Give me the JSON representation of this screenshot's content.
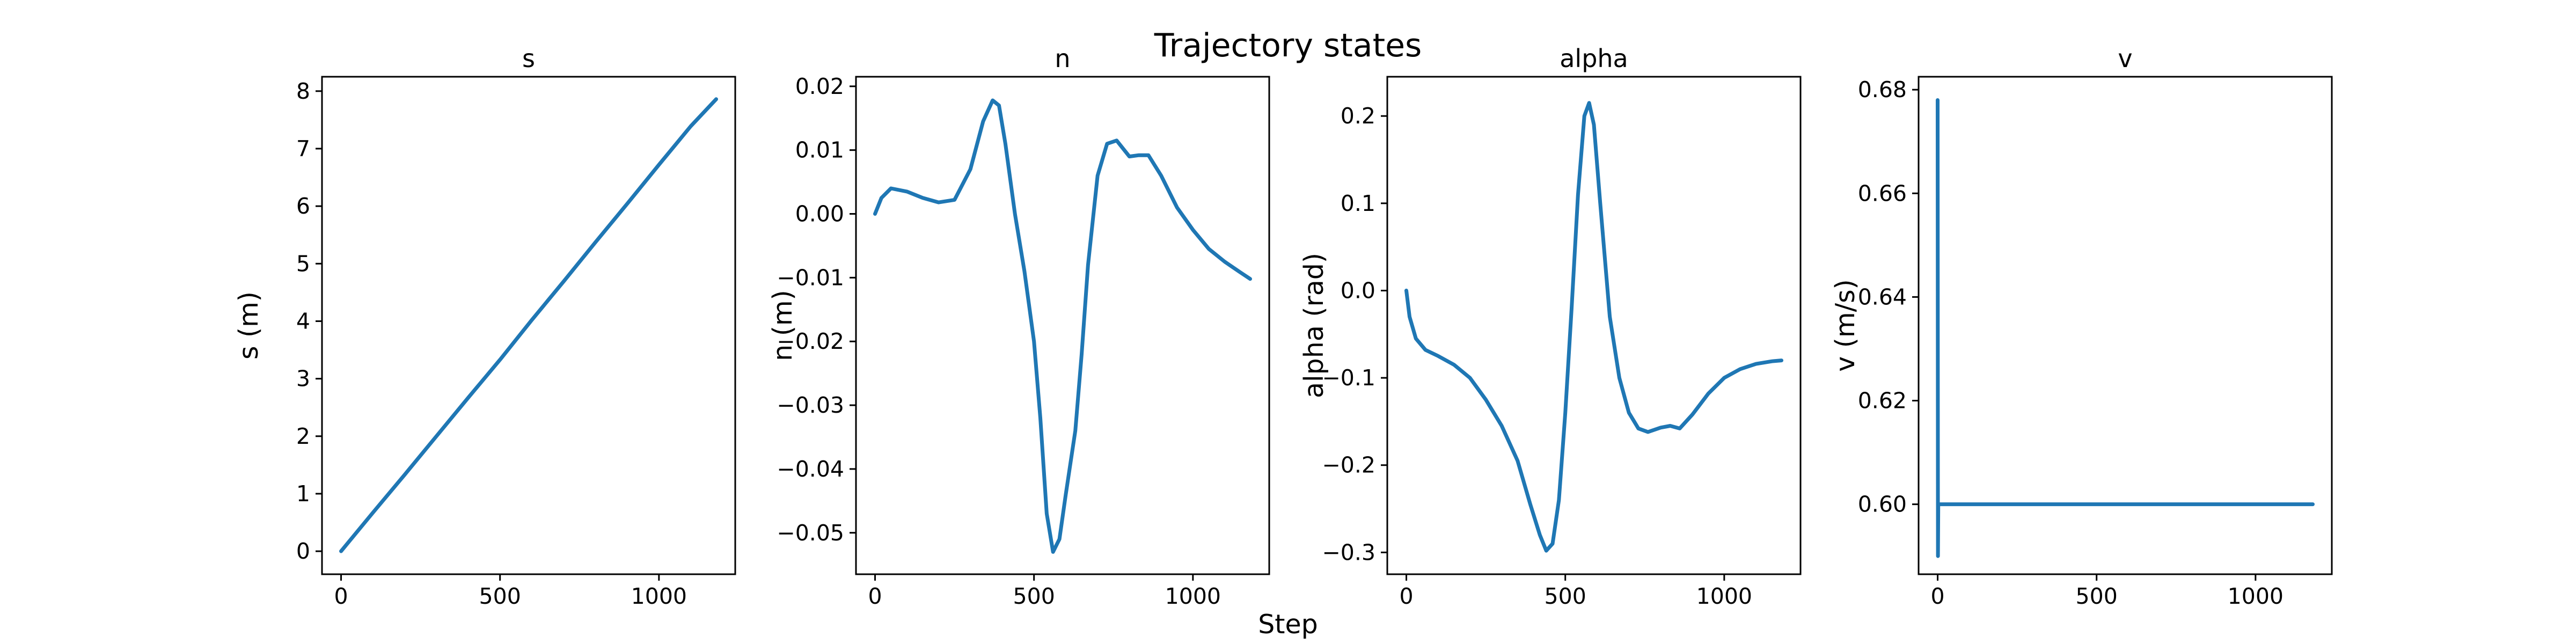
{
  "figure": {
    "title": "Trajectory states",
    "xlabel": "Step",
    "line_color": "#1f77b4"
  },
  "chart_data": [
    {
      "type": "line",
      "title": "s",
      "xlabel": "",
      "ylabel": "s (m)",
      "xlim": [
        -60,
        1240
      ],
      "ylim": [
        -0.4,
        8.25
      ],
      "xticks": [
        0,
        500,
        1000
      ],
      "yticks": [
        0,
        1,
        2,
        3,
        4,
        5,
        6,
        7,
        8
      ],
      "ytick_labels": [
        "0",
        "1",
        "2",
        "3",
        "4",
        "5",
        "6",
        "7",
        "8"
      ],
      "grid": false,
      "series": [
        {
          "x": [
            0,
            100,
            200,
            300,
            400,
            500,
            600,
            700,
            800,
            900,
            1000,
            1100,
            1180
          ],
          "y": [
            0,
            0.67,
            1.33,
            2.0,
            2.67,
            3.33,
            4.02,
            4.69,
            5.37,
            6.04,
            6.72,
            7.39,
            7.86
          ]
        }
      ]
    },
    {
      "type": "line",
      "title": "n",
      "xlabel": "",
      "ylabel": "n (m)",
      "xlim": [
        -60,
        1240
      ],
      "ylim": [
        -0.0565,
        0.0215
      ],
      "xticks": [
        0,
        500,
        1000
      ],
      "yticks": [
        0.02,
        0.01,
        0.0,
        -0.01,
        -0.02,
        -0.03,
        -0.04,
        -0.05
      ],
      "ytick_labels": [
        "0.02",
        "0.01",
        "0.00",
        "−0.01",
        "−0.02",
        "−0.03",
        "−0.04",
        "−0.05"
      ],
      "grid": false,
      "series": [
        {
          "x": [
            0,
            20,
            50,
            100,
            150,
            200,
            250,
            300,
            340,
            370,
            390,
            410,
            440,
            470,
            500,
            520,
            540,
            560,
            580,
            600,
            630,
            650,
            670,
            700,
            730,
            760,
            800,
            830,
            860,
            900,
            950,
            1000,
            1050,
            1100,
            1150,
            1180
          ],
          "y": [
            0.0,
            0.0025,
            0.004,
            0.0035,
            0.0025,
            0.0018,
            0.0022,
            0.007,
            0.0145,
            0.0178,
            0.017,
            0.011,
            0.0,
            -0.009,
            -0.02,
            -0.032,
            -0.047,
            -0.053,
            -0.051,
            -0.044,
            -0.034,
            -0.022,
            -0.008,
            0.006,
            0.011,
            0.0115,
            0.009,
            0.0092,
            0.0092,
            0.006,
            0.001,
            -0.0025,
            -0.0055,
            -0.0075,
            -0.0092,
            -0.0102
          ]
        }
      ]
    },
    {
      "type": "line",
      "title": "alpha",
      "xlabel": "",
      "ylabel": "alpha (rad)",
      "xlim": [
        -60,
        1240
      ],
      "ylim": [
        -0.325,
        0.245
      ],
      "xticks": [
        0,
        500,
        1000
      ],
      "yticks": [
        0.2,
        0.1,
        0.0,
        -0.1,
        -0.2,
        -0.3
      ],
      "ytick_labels": [
        "0.2",
        "0.1",
        "0.0",
        "−0.1",
        "−0.2",
        "−0.3"
      ],
      "grid": false,
      "series": [
        {
          "x": [
            0,
            10,
            30,
            60,
            100,
            150,
            200,
            250,
            300,
            350,
            390,
            420,
            440,
            460,
            480,
            500,
            520,
            540,
            560,
            575,
            590,
            610,
            640,
            670,
            700,
            730,
            760,
            800,
            830,
            860,
            900,
            950,
            1000,
            1050,
            1100,
            1150,
            1180
          ],
          "y": [
            0.0,
            -0.03,
            -0.055,
            -0.068,
            -0.075,
            -0.085,
            -0.1,
            -0.125,
            -0.155,
            -0.195,
            -0.245,
            -0.28,
            -0.298,
            -0.29,
            -0.24,
            -0.14,
            -0.02,
            0.11,
            0.2,
            0.215,
            0.19,
            0.1,
            -0.03,
            -0.1,
            -0.14,
            -0.158,
            -0.162,
            -0.157,
            -0.155,
            -0.158,
            -0.142,
            -0.118,
            -0.1,
            -0.09,
            -0.084,
            -0.081,
            -0.08
          ]
        }
      ]
    },
    {
      "type": "line",
      "title": "v",
      "xlabel": "",
      "ylabel": "v (m/s)",
      "xlim": [
        -60,
        1240
      ],
      "ylim": [
        0.5865,
        0.6825
      ],
      "xticks": [
        0,
        500,
        1000
      ],
      "yticks": [
        0.6,
        0.62,
        0.64,
        0.66,
        0.68
      ],
      "ytick_labels": [
        "0.60",
        "0.62",
        "0.64",
        "0.66",
        "0.68"
      ],
      "grid": false,
      "series": [
        {
          "x": [
            0,
            1,
            2,
            3,
            1180
          ],
          "y": [
            0.678,
            0.59,
            0.6,
            0.6,
            0.6
          ]
        }
      ]
    }
  ]
}
